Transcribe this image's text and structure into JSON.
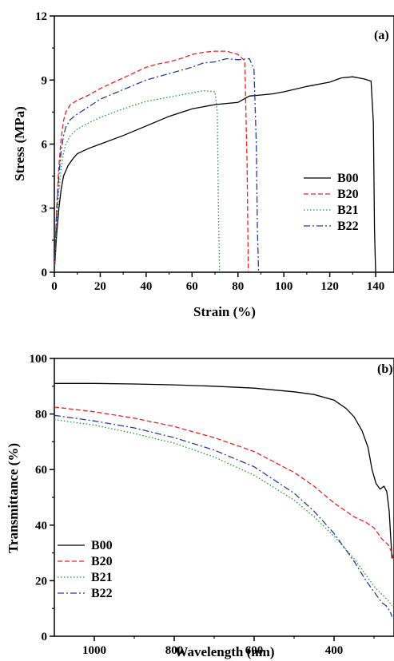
{
  "chart_data": [
    {
      "type": "line",
      "panel_label": "(a)",
      "xlabel": "Strain (%)",
      "ylabel": "Stress (MPa)",
      "xlim": [
        0,
        148
      ],
      "ylim": [
        0,
        12
      ],
      "xticks": [
        0,
        20,
        40,
        60,
        80,
        100,
        120,
        140
      ],
      "yticks": [
        0,
        3,
        6,
        9,
        12
      ],
      "legend_position": "lower-right",
      "series": [
        {
          "name": "B00",
          "color": "#000000",
          "style": "solid",
          "points": [
            [
              0,
              0
            ],
            [
              1,
              1.8
            ],
            [
              2,
              3
            ],
            [
              3,
              3.9
            ],
            [
              4,
              4.5
            ],
            [
              6,
              5.0
            ],
            [
              8,
              5.3
            ],
            [
              10,
              5.55
            ],
            [
              15,
              5.8
            ],
            [
              20,
              6.0
            ],
            [
              30,
              6.4
            ],
            [
              40,
              6.85
            ],
            [
              50,
              7.3
            ],
            [
              60,
              7.65
            ],
            [
              70,
              7.85
            ],
            [
              80,
              7.95
            ],
            [
              85,
              8.25
            ],
            [
              90,
              8.3
            ],
            [
              95,
              8.35
            ],
            [
              100,
              8.45
            ],
            [
              110,
              8.7
            ],
            [
              120,
              8.9
            ],
            [
              125,
              9.1
            ],
            [
              130,
              9.15
            ],
            [
              135,
              9.05
            ],
            [
              138,
              8.95
            ],
            [
              139,
              7.0
            ],
            [
              139.5,
              2.0
            ],
            [
              140,
              0
            ]
          ]
        },
        {
          "name": "B20",
          "color": "#ee2222",
          "style": "dashed",
          "points": [
            [
              0,
              0
            ],
            [
              1,
              3.0
            ],
            [
              2,
              5.0
            ],
            [
              3,
              6.3
            ],
            [
              4,
              7.1
            ],
            [
              5,
              7.5
            ],
            [
              7,
              7.85
            ],
            [
              10,
              8.05
            ],
            [
              15,
              8.3
            ],
            [
              20,
              8.6
            ],
            [
              30,
              9.1
            ],
            [
              40,
              9.6
            ],
            [
              45,
              9.75
            ],
            [
              50,
              9.85
            ],
            [
              55,
              10.0
            ],
            [
              60,
              10.2
            ],
            [
              65,
              10.3
            ],
            [
              70,
              10.35
            ],
            [
              75,
              10.35
            ],
            [
              80,
              10.2
            ],
            [
              83,
              9.9
            ],
            [
              84,
              5.0
            ],
            [
              84.5,
              0
            ]
          ]
        },
        {
          "name": "B21",
          "color": "#1a9a3a",
          "style": "dotted",
          "points": [
            [
              0,
              0
            ],
            [
              1,
              2.2
            ],
            [
              2,
              3.8
            ],
            [
              3,
              4.9
            ],
            [
              4,
              5.6
            ],
            [
              5,
              6.0
            ],
            [
              7,
              6.4
            ],
            [
              10,
              6.7
            ],
            [
              15,
              7.0
            ],
            [
              20,
              7.25
            ],
            [
              30,
              7.65
            ],
            [
              40,
              8.0
            ],
            [
              50,
              8.2
            ],
            [
              60,
              8.4
            ],
            [
              65,
              8.5
            ],
            [
              70,
              8.45
            ],
            [
              71,
              7.5
            ],
            [
              71.5,
              3.0
            ],
            [
              72,
              0
            ]
          ]
        },
        {
          "name": "B22",
          "color": "#2b3a9e",
          "style": "dashdot",
          "points": [
            [
              0,
              0
            ],
            [
              1,
              2.8
            ],
            [
              2,
              4.5
            ],
            [
              3,
              5.7
            ],
            [
              4,
              6.4
            ],
            [
              5,
              6.8
            ],
            [
              7,
              7.15
            ],
            [
              10,
              7.4
            ],
            [
              15,
              7.75
            ],
            [
              20,
              8.1
            ],
            [
              30,
              8.55
            ],
            [
              40,
              9.0
            ],
            [
              50,
              9.3
            ],
            [
              60,
              9.6
            ],
            [
              65,
              9.8
            ],
            [
              70,
              9.85
            ],
            [
              75,
              10.0
            ],
            [
              80,
              9.95
            ],
            [
              85,
              10.0
            ],
            [
              87,
              9.5
            ],
            [
              88,
              6.0
            ],
            [
              88.5,
              2.0
            ],
            [
              89,
              0
            ]
          ]
        }
      ]
    },
    {
      "type": "line",
      "panel_label": "(b)",
      "xlabel": "Wavelength (nm)",
      "ylabel": "Transmittance (%)",
      "xlim": [
        1100,
        250
      ],
      "ylim": [
        0,
        100
      ],
      "xticks": [
        1000,
        800,
        600,
        400
      ],
      "yticks": [
        0,
        20,
        40,
        60,
        80,
        100
      ],
      "legend_position": "lower-left",
      "series": [
        {
          "name": "B00",
          "color": "#000000",
          "style": "solid",
          "points": [
            [
              1100,
              91
            ],
            [
              1000,
              91
            ],
            [
              900,
              90.8
            ],
            [
              800,
              90.5
            ],
            [
              700,
              90
            ],
            [
              600,
              89.3
            ],
            [
              500,
              88
            ],
            [
              450,
              87
            ],
            [
              400,
              85
            ],
            [
              370,
              82
            ],
            [
              350,
              79
            ],
            [
              330,
              74
            ],
            [
              315,
              68
            ],
            [
              305,
              60
            ],
            [
              295,
              55
            ],
            [
              285,
              53
            ],
            [
              275,
              54
            ],
            [
              268,
              52
            ],
            [
              262,
              45
            ],
            [
              258,
              35
            ],
            [
              255,
              28
            ]
          ]
        },
        {
          "name": "B20",
          "color": "#ee2222",
          "style": "dashed",
          "points": [
            [
              1100,
              82.5
            ],
            [
              1000,
              80.8
            ],
            [
              900,
              78.5
            ],
            [
              800,
              75.5
            ],
            [
              700,
              71.5
            ],
            [
              600,
              66.5
            ],
            [
              500,
              59
            ],
            [
              450,
              54
            ],
            [
              400,
              48
            ],
            [
              350,
              43
            ],
            [
              320,
              41
            ],
            [
              300,
              39
            ],
            [
              280,
              35
            ],
            [
              265,
              33
            ],
            [
              255,
              30
            ],
            [
              250,
              27
            ]
          ]
        },
        {
          "name": "B21",
          "color": "#1a9a3a",
          "style": "dotted",
          "points": [
            [
              1100,
              78
            ],
            [
              1000,
              76
            ],
            [
              900,
              73
            ],
            [
              800,
              69.5
            ],
            [
              700,
              64.5
            ],
            [
              600,
              58
            ],
            [
              500,
              49
            ],
            [
              450,
              43
            ],
            [
              400,
              36
            ],
            [
              350,
              28
            ],
            [
              320,
              22
            ],
            [
              300,
              18
            ],
            [
              280,
              15
            ],
            [
              265,
              13
            ],
            [
              255,
              11
            ]
          ]
        },
        {
          "name": "B22",
          "color": "#2b3a9e",
          "style": "dashdot",
          "points": [
            [
              1100,
              79.5
            ],
            [
              1000,
              77.5
            ],
            [
              900,
              75
            ],
            [
              800,
              71.5
            ],
            [
              700,
              67
            ],
            [
              600,
              61
            ],
            [
              500,
              51.5
            ],
            [
              450,
              45
            ],
            [
              400,
              37
            ],
            [
              350,
              27
            ],
            [
              320,
              20
            ],
            [
              300,
              16
            ],
            [
              280,
              12
            ],
            [
              270,
              11
            ],
            [
              260,
              9
            ],
            [
              255,
              7
            ]
          ]
        }
      ]
    }
  ]
}
